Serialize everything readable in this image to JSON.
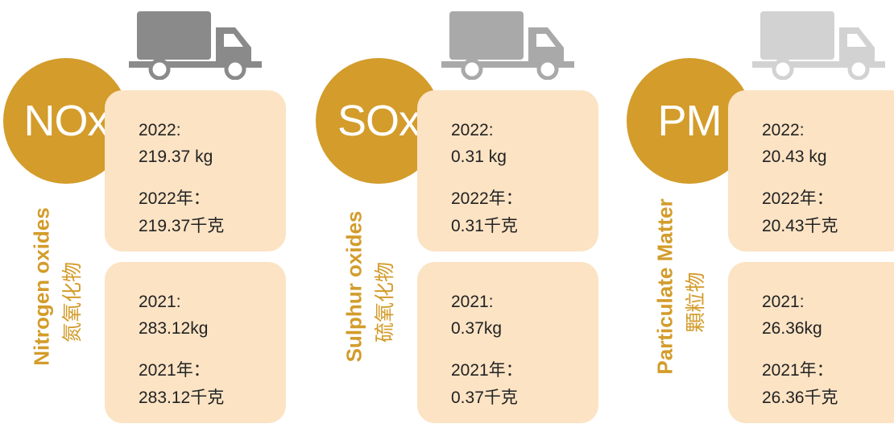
{
  "panels": [
    {
      "abbr": "NOx",
      "name_en": "Nitrogen oxides",
      "name_zh": "氮氧化物",
      "boxes": [
        {
          "lines": [
            "2022:",
            "219.37 kg",
            "2022年：",
            "219.37千克"
          ]
        },
        {
          "lines": [
            "2021:",
            "283.12kg",
            "2021年：",
            "283.12千克"
          ]
        }
      ]
    },
    {
      "abbr": "SOx",
      "name_en": "Sulphur oxides",
      "name_zh": "硫氧化物",
      "boxes": [
        {
          "lines": [
            "2022:",
            "0.31 kg",
            "2022年：",
            "0.31千克"
          ]
        },
        {
          "lines": [
            "2021:",
            "0.37kg",
            "2021年：",
            "0.37千克"
          ]
        }
      ]
    },
    {
      "abbr": "PM",
      "name_en": "Particulate Matter",
      "name_zh": "顆粒物",
      "boxes": [
        {
          "lines": [
            "2022:",
            "20.43 kg",
            "2022年：",
            "20.43千克"
          ]
        },
        {
          "lines": [
            "2021:",
            "26.36kg",
            "2021年：",
            "26.36千克"
          ]
        }
      ]
    }
  ]
}
